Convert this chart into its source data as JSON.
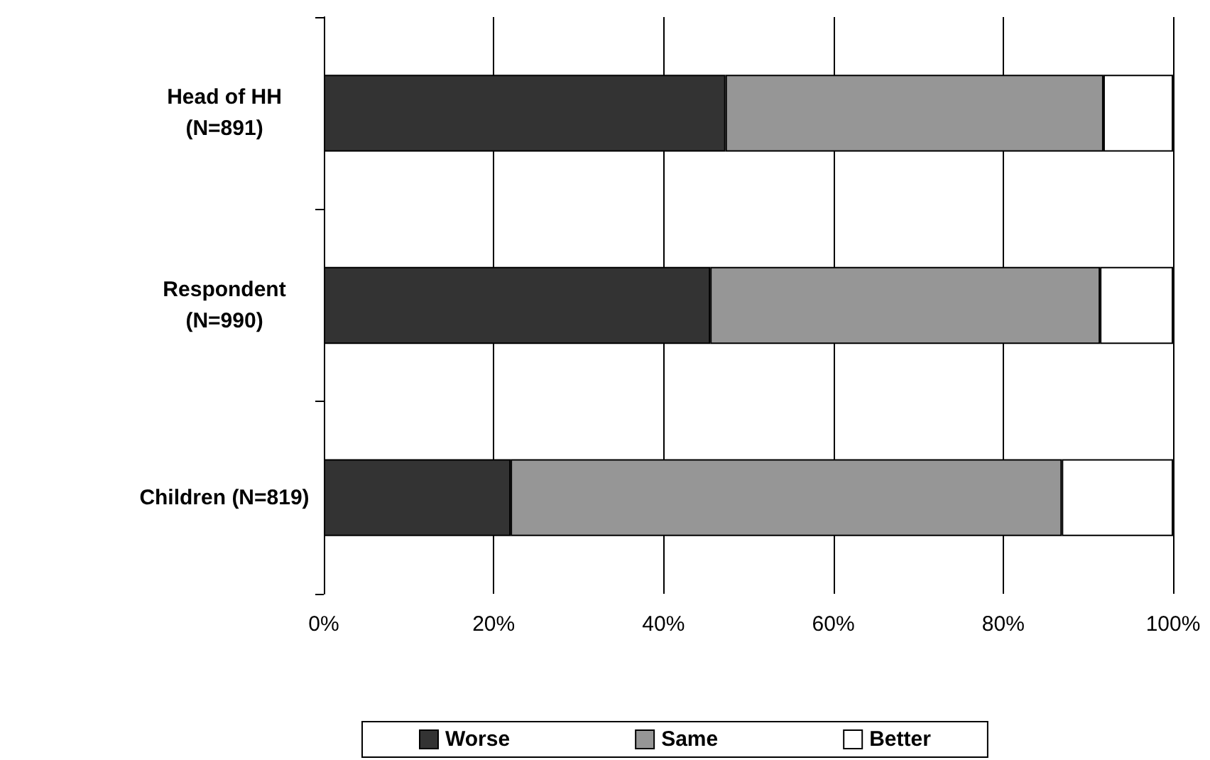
{
  "chart_data": {
    "type": "bar",
    "orientation": "horizontal",
    "stacked": true,
    "categories": [
      "Head of HH\n(N=891)",
      "Respondent\n(N=990)",
      "Children (N=819)"
    ],
    "series": [
      {
        "name": "Worse",
        "color": "#333333",
        "values": [
          47.3,
          45.5,
          22.0
        ]
      },
      {
        "name": "Same",
        "color": "#969696",
        "values": [
          44.5,
          45.9,
          64.9
        ]
      },
      {
        "name": "Better",
        "color": "#ffffff",
        "values": [
          8.2,
          8.6,
          13.1
        ]
      }
    ],
    "xlim": [
      0,
      100
    ],
    "xticks": [
      {
        "value": 0,
        "label": "0%"
      },
      {
        "value": 20,
        "label": "20%"
      },
      {
        "value": 40,
        "label": "40%"
      },
      {
        "value": 60,
        "label": "60%"
      },
      {
        "value": 80,
        "label": "80%"
      },
      {
        "value": 100,
        "label": "100%"
      }
    ],
    "grid": "x",
    "legend": "bottom"
  }
}
